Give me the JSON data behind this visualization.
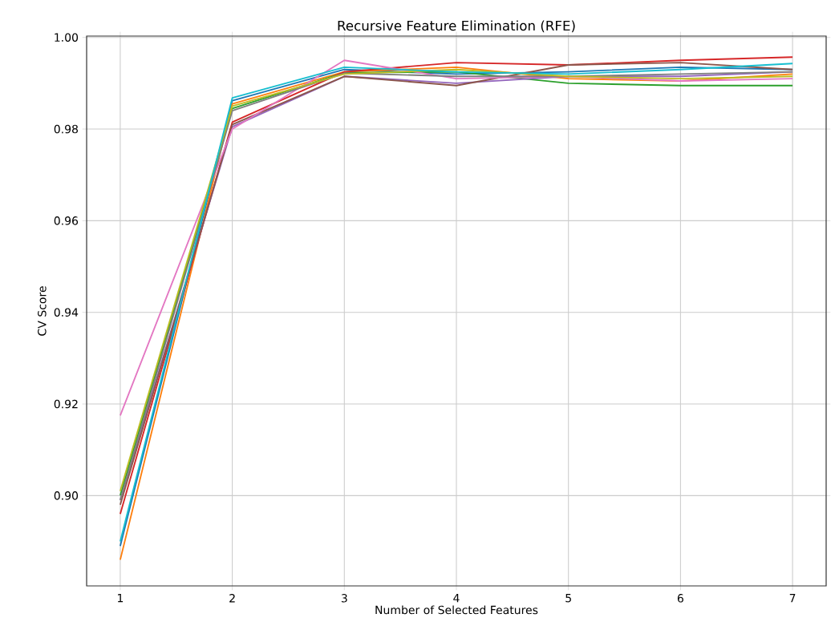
{
  "chart_data": {
    "type": "line",
    "title": "Recursive Feature Elimination (RFE)",
    "xlabel": "Number of Selected Features",
    "ylabel": "CV Score",
    "x": [
      1,
      2,
      3,
      4,
      5,
      6,
      7
    ],
    "series": [
      {
        "color": "#1f77b4",
        "values": [
          0.889,
          0.9862,
          0.993,
          0.992,
          0.9925,
          0.9935,
          0.993
        ]
      },
      {
        "color": "#ff7f0e",
        "values": [
          0.886,
          0.9855,
          0.9925,
          0.9935,
          0.991,
          0.9905,
          0.992
        ]
      },
      {
        "color": "#2ca02c",
        "values": [
          0.9,
          0.9845,
          0.9923,
          0.9925,
          0.99,
          0.9895,
          0.9895
        ]
      },
      {
        "color": "#d62728",
        "values": [
          0.896,
          0.9815,
          0.9925,
          0.9945,
          0.994,
          0.995,
          0.9957
        ]
      },
      {
        "color": "#9467bd",
        "values": [
          0.899,
          0.9805,
          0.9915,
          0.99,
          0.9915,
          0.9915,
          0.9925
        ]
      },
      {
        "color": "#8c564b",
        "values": [
          0.898,
          0.981,
          0.9915,
          0.9895,
          0.994,
          0.9945,
          0.993
        ]
      },
      {
        "color": "#e377c2",
        "values": [
          0.9175,
          0.98,
          0.995,
          0.991,
          0.9915,
          0.9905,
          0.991
        ]
      },
      {
        "color": "#7f7f7f",
        "values": [
          0.899,
          0.984,
          0.9922,
          0.9915,
          0.9915,
          0.992,
          0.9925
        ]
      },
      {
        "color": "#bcbd22",
        "values": [
          0.901,
          0.985,
          0.992,
          0.993,
          0.9915,
          0.991,
          0.9915
        ]
      },
      {
        "color": "#17becf",
        "values": [
          0.89,
          0.9868,
          0.9935,
          0.9925,
          0.992,
          0.993,
          0.9943
        ]
      }
    ],
    "xlim": [
      0.7,
      7.3
    ],
    "ylim": [
      0.8803,
      1.0003
    ],
    "xticks": [
      1,
      2,
      3,
      4,
      5,
      6,
      7
    ],
    "yticks": [
      {
        "value": 0.9,
        "label": "0.90"
      },
      {
        "value": 0.92,
        "label": "0.92"
      },
      {
        "value": 0.94,
        "label": "0.94"
      },
      {
        "value": 0.96,
        "label": "0.96"
      },
      {
        "value": 0.98,
        "label": "0.98"
      },
      {
        "value": 1.0,
        "label": "1.00"
      }
    ],
    "grid": true,
    "legend": false,
    "marker": "none",
    "line_style": "solid"
  }
}
